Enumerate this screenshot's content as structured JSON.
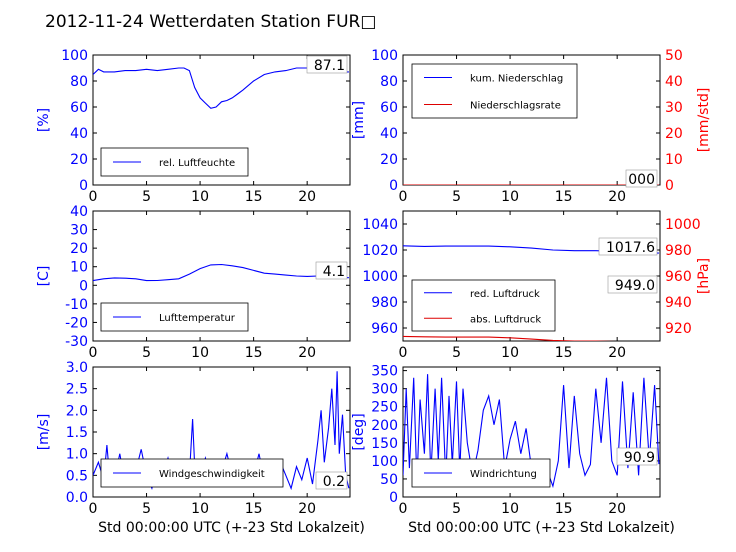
{
  "title": "2012-11-24 Wetterdaten Station FUR□",
  "colors": {
    "left_axis": "#0000ff",
    "right_axis": "#ff0000",
    "series_blue": "#0000ff",
    "series_red": "#dd0000",
    "series_black": "#000000",
    "series_light": "#7777ff"
  },
  "chart_data": [
    {
      "type": "line",
      "id": "humidity",
      "ylabel": "[%]",
      "xlim": [
        0,
        24
      ],
      "ylim": [
        0,
        100
      ],
      "xticks": [
        0,
        5,
        10,
        15,
        20
      ],
      "yticks": [
        0,
        20,
        40,
        60,
        80,
        100
      ],
      "legend": "bottom-left",
      "current_value": "87.1",
      "series": [
        {
          "name": "rel. Luftfeuchte",
          "color": "#0000ff",
          "x": [
            0,
            0.5,
            1,
            2,
            3,
            4,
            5,
            6,
            7,
            8,
            8.5,
            9,
            9.5,
            10,
            10.5,
            11,
            11.5,
            12,
            12.5,
            13,
            13.5,
            14,
            15,
            16,
            17,
            18,
            19,
            20,
            21,
            22,
            23,
            23.9
          ],
          "y": [
            85,
            89,
            87,
            87,
            88,
            88,
            89,
            88,
            89,
            90,
            90,
            88,
            75,
            67,
            63,
            59,
            60,
            64,
            65,
            67,
            70,
            73,
            80,
            85,
            87,
            88,
            90,
            90,
            91,
            89,
            87,
            87
          ]
        }
      ]
    },
    {
      "type": "line",
      "id": "precipitation",
      "ylabel": "[mm]",
      "y2label": "[mm/std]",
      "xlim": [
        0,
        24
      ],
      "ylim": [
        0,
        100
      ],
      "y2lim": [
        0,
        50
      ],
      "xticks": [
        0,
        5,
        10,
        15,
        20
      ],
      "yticks": [
        0,
        20,
        40,
        60,
        80,
        100
      ],
      "y2ticks": [
        0,
        10,
        20,
        30,
        40,
        50
      ],
      "legend": "top-left",
      "current_value": "000",
      "series": [
        {
          "name": "kum. Niederschlag",
          "color": "#0000ff",
          "x": [
            0,
            23.9
          ],
          "y": [
            0,
            0
          ]
        },
        {
          "name": "Niederschlagsrate",
          "color": "#dd0000",
          "x": [
            0,
            23.9
          ],
          "y": [
            0,
            0
          ]
        }
      ]
    },
    {
      "type": "line",
      "id": "temperature",
      "ylabel": "[C]",
      "xlim": [
        0,
        24
      ],
      "ylim": [
        -30,
        40
      ],
      "xticks": [
        0,
        5,
        10,
        15,
        20
      ],
      "yticks": [
        -30,
        -20,
        -10,
        0,
        10,
        20,
        30,
        40
      ],
      "legend": "bottom-left",
      "current_value": "4.1",
      "series": [
        {
          "name": "Lufttemperatur",
          "color": "#0000ff",
          "x": [
            0,
            1,
            2,
            3,
            4,
            5,
            6,
            7,
            8,
            9,
            10,
            11,
            12,
            13,
            14,
            15,
            16,
            17,
            18,
            19,
            20,
            21,
            22,
            23,
            23.9
          ],
          "y": [
            2.5,
            3.5,
            4,
            3.8,
            3.5,
            2.5,
            2.6,
            3,
            3.5,
            6,
            9,
            11,
            11.2,
            10.5,
            9.5,
            8,
            6.5,
            6,
            5.5,
            5,
            4.8,
            5,
            4.5,
            4.3,
            4.1
          ]
        }
      ]
    },
    {
      "type": "line",
      "id": "pressure",
      "y2label": "[hPa]",
      "xlim": [
        0,
        24
      ],
      "ylim": [
        950,
        1050
      ],
      "y2lim": [
        910,
        1010
      ],
      "xticks": [
        0,
        5,
        10,
        15,
        20
      ],
      "yticks": [
        960,
        980,
        1000,
        1020,
        1040
      ],
      "y2ticks": [
        920,
        940,
        960,
        980,
        1000
      ],
      "legend": "bottom-left",
      "current_values": [
        "1017.6",
        "949.0"
      ],
      "series": [
        {
          "name": "red. Luftdruck",
          "color": "#0000ff",
          "x": [
            0,
            2,
            4,
            6,
            8,
            10,
            12,
            14,
            16,
            18,
            20,
            22,
            23.9
          ],
          "y": [
            1023.2,
            1022.8,
            1023,
            1023,
            1023,
            1022.5,
            1021.5,
            1020,
            1019.5,
            1019.5,
            1019,
            1018,
            1017.6
          ]
        },
        {
          "name": "abs. Luftdruck",
          "color": "#dd0000",
          "x": [
            0,
            2,
            4,
            6,
            8,
            10,
            12,
            14,
            16,
            18,
            20,
            22,
            23.9
          ],
          "y": [
            953.5,
            953.2,
            953,
            953,
            953,
            952.5,
            951.5,
            950.5,
            950,
            950,
            949.5,
            949.2,
            949.0
          ]
        }
      ]
    },
    {
      "type": "line",
      "id": "wind_speed",
      "ylabel": "[m/s]",
      "xlabel": "Std 00:00:00 UTC (+-23 Std Lokalzeit)",
      "xlim": [
        0,
        24
      ],
      "ylim": [
        0,
        3.0
      ],
      "xticks": [
        0,
        5,
        10,
        15,
        20
      ],
      "yticks": [
        0.0,
        0.5,
        1.0,
        1.5,
        2.0,
        2.5,
        3.0
      ],
      "legend": "bottom-center",
      "current_value": "0.2",
      "series": [
        {
          "name": "Windgeschwindigkeit",
          "color": "#0000ff",
          "x": [
            0,
            0.5,
            1,
            1.3,
            1.5,
            2,
            2.5,
            3,
            3.5,
            4,
            4.5,
            5,
            5.5,
            6,
            6.5,
            7,
            7.5,
            8,
            8.5,
            9,
            9.3,
            9.5,
            10,
            10.5,
            11,
            11.5,
            12,
            12.5,
            13,
            13.5,
            14,
            14.5,
            15,
            15.5,
            16,
            16.5,
            17,
            17.5,
            18,
            18.5,
            19,
            19.5,
            20,
            20.5,
            21,
            21.3,
            21.6,
            22,
            22.3,
            22.6,
            22.8,
            23,
            23.3,
            23.6,
            23.9
          ],
          "y": [
            0.5,
            0.8,
            0.4,
            1.2,
            0.6,
            0.4,
            1.0,
            0.3,
            0.8,
            0.6,
            1.1,
            0.5,
            0.2,
            0.7,
            0.5,
            0.9,
            0.4,
            0.6,
            0.3,
            0.5,
            1.8,
            0.7,
            0.5,
            0.9,
            0.4,
            0.8,
            0.6,
            1.0,
            0.5,
            0.8,
            0.3,
            0.7,
            0.5,
            1.0,
            0.4,
            0.6,
            0.3,
            0.8,
            0.5,
            0.2,
            0.7,
            0.4,
            0.9,
            0.3,
            1.3,
            2.0,
            0.8,
            1.6,
            2.5,
            1.2,
            2.9,
            1.0,
            1.9,
            0.5,
            0.2
          ]
        }
      ]
    },
    {
      "type": "line",
      "id": "wind_direction",
      "ylabel": "[deg]",
      "xlabel": "Std 00:00:00 UTC (+-23 Std Lokalzeit)",
      "xlim": [
        0,
        24
      ],
      "ylim": [
        0,
        360
      ],
      "xticks": [
        0,
        5,
        10,
        15,
        20
      ],
      "yticks": [
        0,
        50,
        100,
        150,
        200,
        250,
        300,
        350
      ],
      "legend": "bottom-center",
      "current_value": "90.9",
      "series": [
        {
          "name": "Windrichtung",
          "color": "#0000ff",
          "x": [
            0,
            0.3,
            0.6,
            1,
            1.3,
            1.6,
            2,
            2.3,
            2.6,
            3,
            3.3,
            3.6,
            4,
            4.3,
            4.6,
            5,
            5.3,
            5.6,
            6,
            6.5,
            7,
            7.5,
            8,
            8.5,
            9,
            9.5,
            10,
            10.5,
            11,
            11.5,
            12,
            12.5,
            13,
            13.5,
            14,
            14.5,
            15,
            15.5,
            16,
            16.5,
            17,
            17.5,
            18,
            18.5,
            19,
            19.5,
            20,
            20.5,
            21,
            21.5,
            22,
            22.5,
            23,
            23.5,
            23.9
          ],
          "y": [
            60,
            300,
            80,
            330,
            40,
            270,
            120,
            340,
            60,
            300,
            100,
            330,
            50,
            280,
            90,
            320,
            70,
            300,
            150,
            60,
            130,
            240,
            280,
            200,
            270,
            80,
            160,
            210,
            120,
            190,
            80,
            60,
            40,
            70,
            30,
            100,
            310,
            80,
            280,
            120,
            60,
            90,
            300,
            150,
            330,
            100,
            60,
            320,
            80,
            290,
            60,
            330,
            100,
            310,
            91
          ]
        }
      ]
    }
  ]
}
